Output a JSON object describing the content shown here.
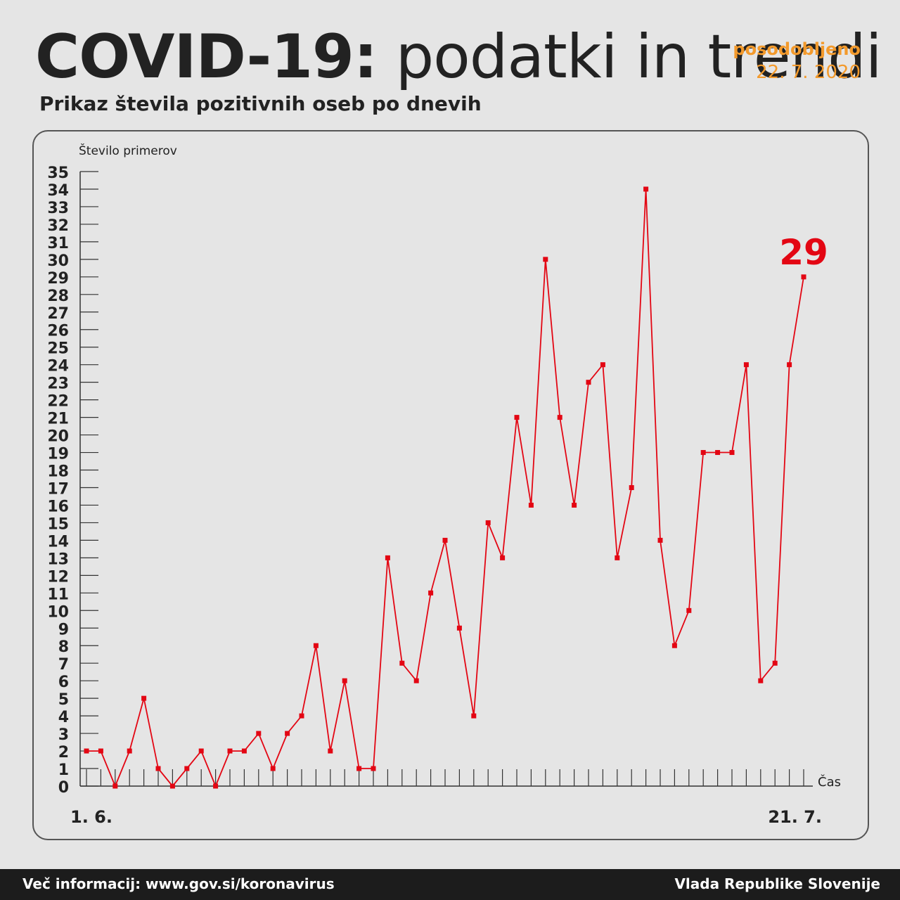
{
  "header": {
    "title_bold": "COVID-19:",
    "title_light": "podatki in trendi",
    "updated_label": "posodobljeno",
    "updated_date": "22. 7. 2020",
    "subtitle": "Prikaz števila pozitivnih oseb po dnevih"
  },
  "footer": {
    "info": "Več informacij: www.gov.si/koronavirus",
    "org": "Vlada Republike Slovenije"
  },
  "colors": {
    "line": "#e30613",
    "accent": "#f39a2c",
    "text": "#222222"
  },
  "chart_data": {
    "type": "line",
    "ylabel": "Število primerov",
    "xlabel": "Čas",
    "x_start_label": "1. 6.",
    "x_end_label": "21. 7.",
    "ylim": [
      0,
      35
    ],
    "highlight_label": "29",
    "series": [
      {
        "values": [
          2,
          2,
          0,
          2,
          5,
          1,
          0,
          1,
          2,
          0,
          2,
          2,
          3,
          1,
          3,
          4,
          8,
          2,
          6,
          1,
          1,
          13,
          7,
          6,
          11,
          14,
          9,
          4,
          15,
          13,
          21,
          16,
          30,
          21,
          16,
          23,
          24,
          13,
          17,
          34,
          14,
          8,
          10,
          19,
          19,
          19,
          24,
          6,
          7,
          24,
          29
        ]
      }
    ]
  }
}
